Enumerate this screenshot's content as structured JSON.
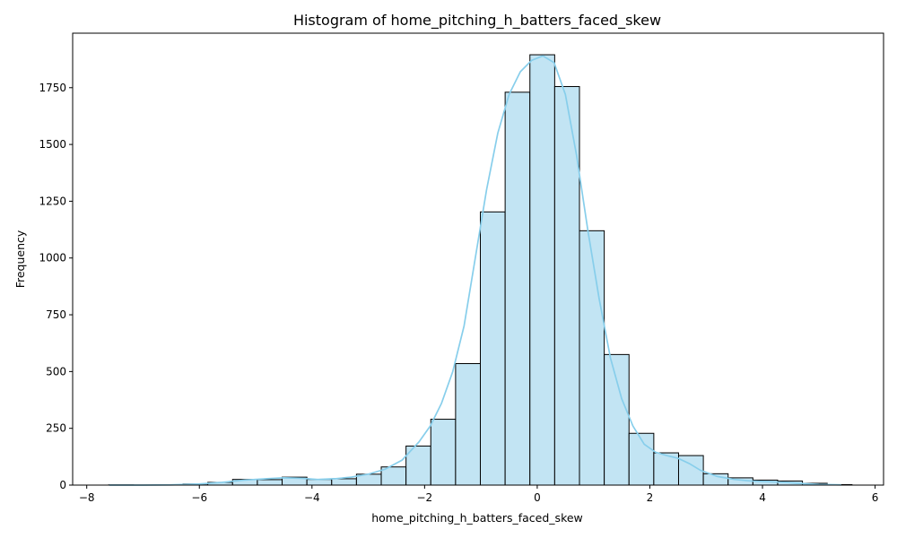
{
  "chart_data": {
    "type": "histogram",
    "title": "Histogram of home_pitching_h_batters_faced_skew",
    "xlabel": "home_pitching_h_batters_faced_skew",
    "ylabel": "Frequency",
    "xlim": [
      -8.25,
      6.15
    ],
    "ylim": [
      0,
      1990
    ],
    "x_ticks": [
      -8,
      -6,
      -4,
      -2,
      0,
      2,
      4,
      6
    ],
    "x_tick_labels": [
      "−8",
      "−6",
      "−4",
      "−2",
      "0",
      "2",
      "4",
      "6"
    ],
    "y_ticks": [
      0,
      250,
      500,
      750,
      1000,
      1250,
      1500,
      1750
    ],
    "y_tick_labels": [
      "0",
      "250",
      "500",
      "750",
      "1000",
      "1250",
      "1500",
      "1750"
    ],
    "bins": [
      {
        "x0": -7.61,
        "x1": -7.17,
        "count": 1
      },
      {
        "x0": -7.17,
        "x1": -6.73,
        "count": 0
      },
      {
        "x0": -6.73,
        "x1": -6.29,
        "count": 2
      },
      {
        "x0": -6.29,
        "x1": -5.85,
        "count": 5
      },
      {
        "x0": -5.85,
        "x1": -5.41,
        "count": 12
      },
      {
        "x0": -5.41,
        "x1": -4.97,
        "count": 25
      },
      {
        "x0": -4.97,
        "x1": -4.53,
        "count": 24
      },
      {
        "x0": -4.53,
        "x1": -4.09,
        "count": 35
      },
      {
        "x0": -4.09,
        "x1": -3.65,
        "count": 25
      },
      {
        "x0": -3.65,
        "x1": -3.21,
        "count": 28
      },
      {
        "x0": -3.21,
        "x1": -2.77,
        "count": 48
      },
      {
        "x0": -2.77,
        "x1": -2.33,
        "count": 80
      },
      {
        "x0": -2.33,
        "x1": -1.89,
        "count": 172
      },
      {
        "x0": -1.89,
        "x1": -1.45,
        "count": 290
      },
      {
        "x0": -1.45,
        "x1": -1.01,
        "count": 535
      },
      {
        "x0": -1.01,
        "x1": -0.57,
        "count": 1203
      },
      {
        "x0": -0.57,
        "x1": -0.13,
        "count": 1730
      },
      {
        "x0": -0.13,
        "x1": 0.31,
        "count": 1895
      },
      {
        "x0": 0.31,
        "x1": 0.75,
        "count": 1755
      },
      {
        "x0": 0.75,
        "x1": 1.19,
        "count": 1120
      },
      {
        "x0": 1.19,
        "x1": 1.63,
        "count": 575
      },
      {
        "x0": 1.63,
        "x1": 2.07,
        "count": 228
      },
      {
        "x0": 2.07,
        "x1": 2.51,
        "count": 142
      },
      {
        "x0": 2.51,
        "x1": 2.95,
        "count": 130
      },
      {
        "x0": 2.95,
        "x1": 3.39,
        "count": 50
      },
      {
        "x0": 3.39,
        "x1": 3.83,
        "count": 32
      },
      {
        "x0": 3.83,
        "x1": 4.27,
        "count": 22
      },
      {
        "x0": 4.27,
        "x1": 4.71,
        "count": 18
      },
      {
        "x0": 4.71,
        "x1": 5.15,
        "count": 8
      },
      {
        "x0": 5.15,
        "x1": 5.59,
        "count": 2
      }
    ],
    "kde": {
      "x": [
        -7.6,
        -7.0,
        -6.5,
        -6.0,
        -5.6,
        -5.2,
        -4.8,
        -4.5,
        -4.2,
        -3.9,
        -3.6,
        -3.3,
        -3.0,
        -2.7,
        -2.4,
        -2.1,
        -1.9,
        -1.7,
        -1.5,
        -1.3,
        -1.1,
        -0.9,
        -0.7,
        -0.5,
        -0.3,
        -0.1,
        0.1,
        0.3,
        0.5,
        0.7,
        0.9,
        1.1,
        1.3,
        1.5,
        1.7,
        1.9,
        2.1,
        2.3,
        2.5,
        2.7,
        2.9,
        3.2,
        3.5,
        3.8,
        4.1,
        4.4,
        4.7,
        5.0,
        5.4
      ],
      "y": [
        0,
        0,
        1,
        5,
        12,
        22,
        28,
        32,
        30,
        25,
        28,
        35,
        48,
        70,
        110,
        190,
        260,
        360,
        500,
        700,
        1000,
        1300,
        1550,
        1720,
        1820,
        1870,
        1890,
        1860,
        1720,
        1450,
        1120,
        820,
        560,
        380,
        260,
        180,
        145,
        130,
        118,
        95,
        65,
        38,
        25,
        18,
        15,
        12,
        7,
        3,
        1
      ],
      "color": "#87ceeb"
    },
    "bar_color": "#c2e4f3",
    "edge_color": "#000000",
    "grid": false
  }
}
